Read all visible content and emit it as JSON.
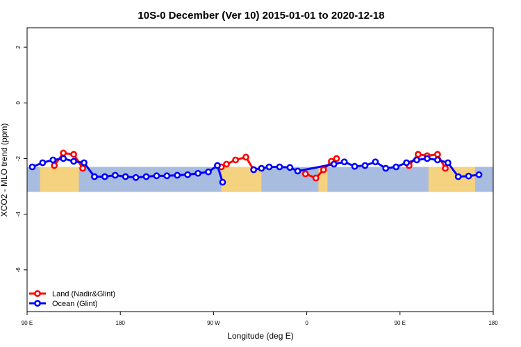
{
  "chart_data": {
    "type": "line",
    "title": "10S-0 December (Ver 10)   2015-01-01 to 2020-12-18",
    "xlabel": "Longitude (deg E)",
    "ylabel": "XCO2 - MLO trend (ppm)",
    "xlim": [
      90,
      450
    ],
    "ylim": [
      -7.5,
      2.7
    ],
    "x_ticks": [
      {
        "value": 90,
        "label": "90 E"
      },
      {
        "value": 162,
        "label": "180"
      },
      {
        "value": 234,
        "label": "90 W"
      },
      {
        "value": 306,
        "label": "0"
      },
      {
        "value": 378,
        "label": "90 E"
      },
      {
        "value": 450,
        "label": "180"
      }
    ],
    "y_ticks": [
      {
        "value": 2,
        "label": "2"
      },
      {
        "value": 0,
        "label": "0"
      },
      {
        "value": -2,
        "label": "-2"
      },
      {
        "value": -4,
        "label": "-4"
      },
      {
        "value": -6,
        "label": "-6"
      }
    ],
    "grid": false,
    "legend_position": "bottom-left",
    "map_band": {
      "y_range": [
        -3.2,
        -2.3
      ],
      "ocean_color": "#a7bcdf",
      "land_color": "#f5d27f",
      "land_segments": [
        [
          100,
          130
        ],
        [
          240,
          271
        ],
        [
          315,
          322
        ],
        [
          400,
          436
        ]
      ]
    },
    "series": [
      {
        "name": "Land (Nadir&Glint)",
        "color": "#ff0000",
        "segments": [
          [
            [
              111,
              -2.25
            ],
            [
              118,
              -1.8
            ],
            [
              126,
              -1.85
            ],
            [
              133,
              -2.35
            ]
          ],
          [
            [
              240,
              -2.3
            ],
            [
              244,
              -2.2
            ],
            [
              251,
              -2.05
            ],
            [
              259,
              -1.95
            ],
            [
              265,
              -2.4
            ]
          ],
          [
            [
              305,
              -2.55
            ],
            [
              313,
              -2.7
            ],
            [
              319,
              -2.4
            ],
            [
              325,
              -2.1
            ],
            [
              329,
              -2.0
            ]
          ],
          [
            [
              385,
              -2.25
            ],
            [
              392,
              -1.85
            ],
            [
              399,
              -1.9
            ],
            [
              407,
              -1.85
            ],
            [
              413,
              -2.35
            ]
          ]
        ]
      },
      {
        "name": "Ocean (Glint)",
        "color": "#0000ff",
        "segments": [
          [
            [
              94,
              -2.3
            ],
            [
              102,
              -2.15
            ],
            [
              110,
              -2.05
            ],
            [
              118,
              -2.0
            ],
            [
              126,
              -2.1
            ],
            [
              134,
              -2.15
            ],
            [
              142,
              -2.65
            ],
            [
              150,
              -2.65
            ],
            [
              158,
              -2.6
            ],
            [
              166,
              -2.65
            ],
            [
              174,
              -2.68
            ],
            [
              182,
              -2.65
            ],
            [
              190,
              -2.62
            ],
            [
              198,
              -2.62
            ],
            [
              206,
              -2.6
            ],
            [
              214,
              -2.58
            ],
            [
              222,
              -2.53
            ],
            [
              230,
              -2.48
            ],
            [
              237,
              -2.25
            ],
            [
              241,
              -2.85
            ]
          ],
          [
            [
              265,
              -2.4
            ],
            [
              271,
              -2.35
            ],
            [
              277,
              -2.3
            ],
            [
              285,
              -2.3
            ],
            [
              293,
              -2.32
            ],
            [
              299,
              -2.45
            ],
            [
              327,
              -2.2
            ],
            [
              335,
              -2.12
            ],
            [
              343,
              -2.28
            ],
            [
              351,
              -2.25
            ],
            [
              359,
              -2.12
            ],
            [
              367,
              -2.35
            ],
            [
              375,
              -2.3
            ],
            [
              383,
              -2.15
            ],
            [
              391,
              -2.05
            ],
            [
              399,
              -2.0
            ],
            [
              407,
              -2.05
            ],
            [
              415,
              -2.15
            ],
            [
              423,
              -2.65
            ],
            [
              431,
              -2.63
            ],
            [
              439,
              -2.58
            ]
          ]
        ]
      }
    ]
  }
}
